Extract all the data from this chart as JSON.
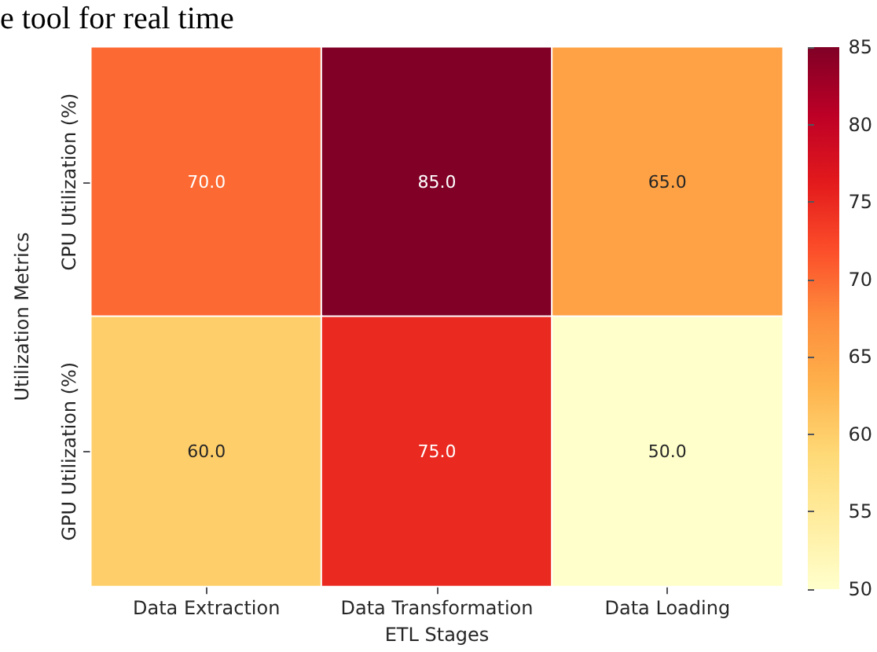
{
  "chart_data": {
    "type": "heatmap",
    "xlabel": "ETL Stages",
    "ylabel": "Utilization Metrics",
    "annotations": [
      "e tool for real time"
    ],
    "categories": [
      "Data Extraction",
      "Data Transformation",
      "Data Loading"
    ],
    "y_categories": [
      "CPU Utilization (%)",
      "GPU Utilization (%)"
    ],
    "cells": [
      [
        70,
        85,
        65
      ],
      [
        60,
        75,
        50
      ]
    ],
    "cell_labels": [
      [
        "70.0",
        "85.0",
        "65.0"
      ],
      [
        "60.0",
        "75.0",
        "50.0"
      ]
    ],
    "clim": [
      50,
      85
    ],
    "cticks": [
      50,
      55,
      60,
      65,
      70,
      75,
      80,
      85
    ]
  }
}
